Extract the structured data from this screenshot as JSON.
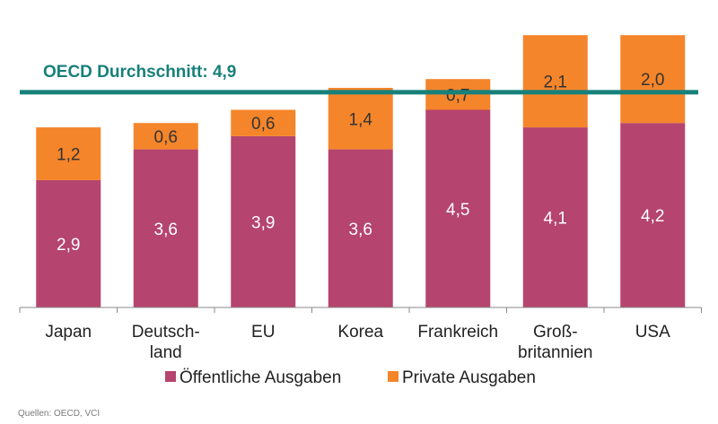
{
  "chart_data": {
    "type": "bar",
    "stacked": true,
    "categories": [
      [
        "Japan"
      ],
      [
        "Deutsch-",
        "land"
      ],
      [
        "EU"
      ],
      [
        "Korea"
      ],
      [
        "Frankreich"
      ],
      [
        "Groß-",
        "britannien"
      ],
      [
        "USA"
      ]
    ],
    "series": [
      {
        "name": "Öffentliche Ausgaben",
        "color": "#b5446e",
        "values": [
          2.9,
          3.6,
          3.9,
          3.6,
          4.5,
          4.1,
          4.2
        ],
        "labels": [
          "2,9",
          "3,6",
          "3,9",
          "3,6",
          "4,5",
          "4,1",
          "4,2"
        ],
        "label_color": "#ffffff"
      },
      {
        "name": "Private Ausgaben",
        "color": "#f5852a",
        "values": [
          1.2,
          0.6,
          0.6,
          1.4,
          0.7,
          2.1,
          2.0
        ],
        "labels": [
          "1,2",
          "0,6",
          "0,6",
          "1,4",
          "0,7",
          "2,1",
          "2,0"
        ],
        "label_color": "#333333"
      }
    ],
    "reference_line": {
      "label": "OECD Durchschnitt: 4,9",
      "value": 4.9,
      "color": "#17807a"
    },
    "ylim": [
      0,
      6.2
    ],
    "legend": "bottom",
    "source": "Quellen: OECD, VCI"
  }
}
